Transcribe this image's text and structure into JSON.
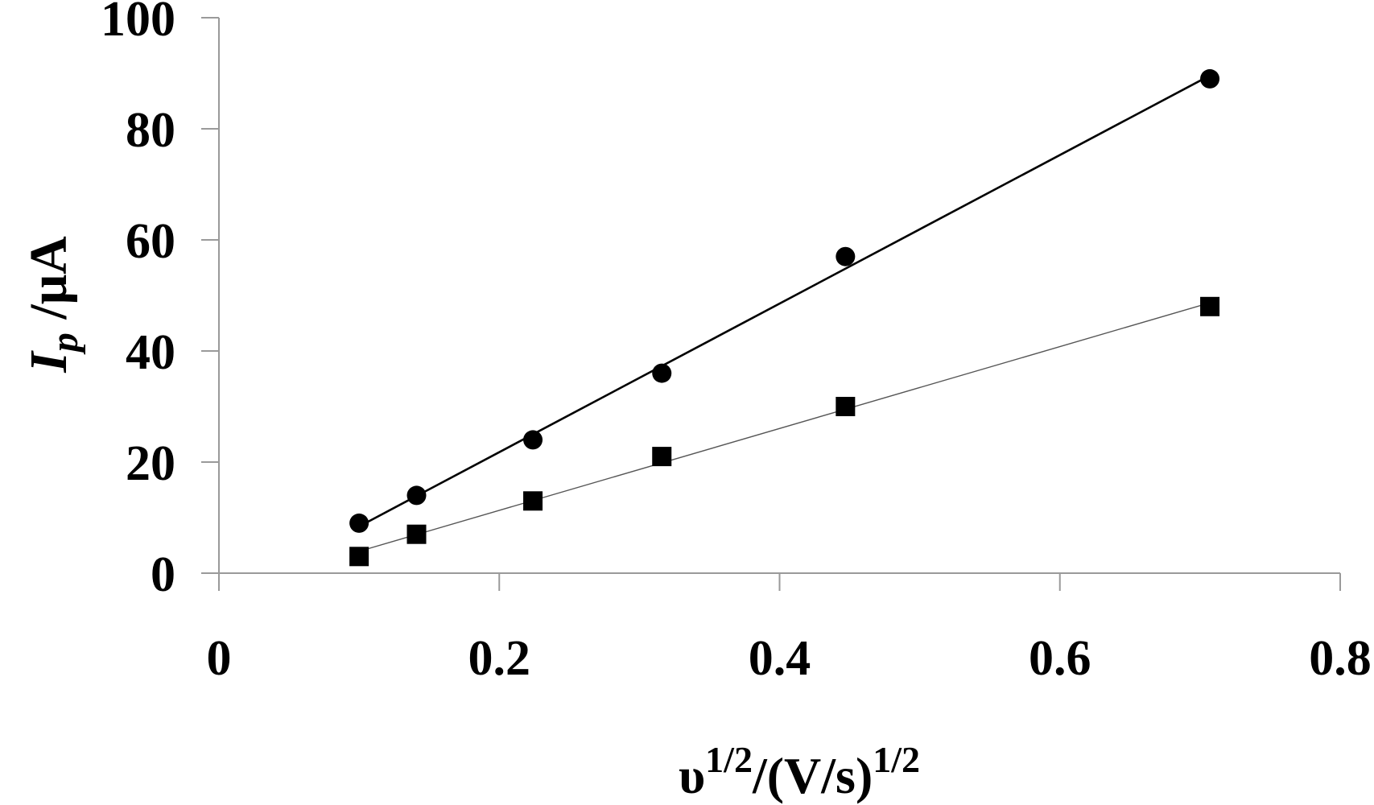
{
  "chart_data": {
    "type": "scatter",
    "title": "",
    "xlabel": "υ^1/2/(V/s)^1/2",
    "ylabel": "Ip /μA",
    "xlabel_parts": {
      "symbol": "υ",
      "sup1": "1/2",
      "mid": "/(V/s)",
      "sup2": "1/2"
    },
    "ylabel_parts": {
      "symbol": "I",
      "sub": "p",
      "unit": " /μA"
    },
    "xlim": [
      0,
      0.8
    ],
    "ylim": [
      0,
      100
    ],
    "xticks": [
      0,
      0.2,
      0.4,
      0.6,
      0.8
    ],
    "xtick_labels": [
      "0",
      "0.2",
      "0.4",
      "0.6",
      "0.8"
    ],
    "yticks": [
      0,
      20,
      40,
      60,
      80,
      100
    ],
    "ytick_labels": [
      "0",
      "20",
      "40",
      "60",
      "80",
      "100"
    ],
    "grid": false,
    "legend": null,
    "series": [
      {
        "name": "circles",
        "marker": "circle",
        "color": "#000000",
        "trendline": "linear",
        "x": [
          0.1,
          0.141,
          0.224,
          0.316,
          0.447,
          0.707
        ],
        "y": [
          9,
          14,
          24,
          36,
          57,
          89
        ]
      },
      {
        "name": "squares",
        "marker": "square",
        "color": "#000000",
        "trendline": "linear",
        "x": [
          0.1,
          0.141,
          0.224,
          0.316,
          0.447,
          0.707
        ],
        "y": [
          3,
          7,
          13,
          21,
          30,
          48
        ]
      }
    ]
  },
  "colors": {
    "axis": "#9a9a9a",
    "marker": "#000000",
    "trend_primary": "#000000",
    "trend_secondary": "#555555"
  }
}
